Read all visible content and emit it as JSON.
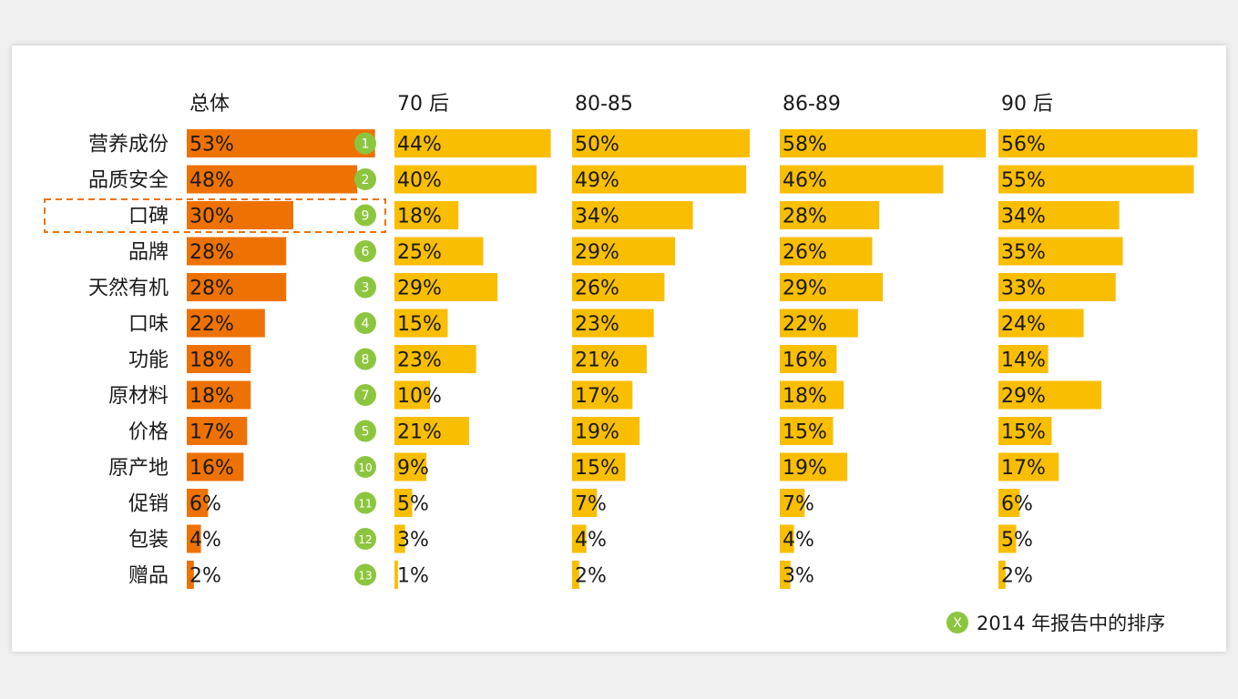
{
  "chart_data": {
    "type": "bar",
    "orientation": "horizontal",
    "categories": [
      "营养成份",
      "品质安全",
      "口碑",
      "品牌",
      "天然有机",
      "口味",
      "功能",
      "原材料",
      "价格",
      "原产地",
      "促销",
      "包装",
      "赠品"
    ],
    "series": [
      {
        "name": "总体",
        "values": [
          53,
          48,
          30,
          28,
          28,
          22,
          18,
          18,
          17,
          16,
          6,
          4,
          2
        ]
      },
      {
        "name": "70 后",
        "values": [
          44,
          40,
          18,
          25,
          29,
          15,
          23,
          10,
          21,
          9,
          5,
          3,
          1
        ]
      },
      {
        "name": "80-85",
        "values": [
          50,
          49,
          34,
          29,
          26,
          23,
          21,
          17,
          19,
          15,
          7,
          4,
          2
        ]
      },
      {
        "name": "86-89",
        "values": [
          58,
          46,
          28,
          26,
          29,
          22,
          16,
          18,
          15,
          19,
          7,
          4,
          3
        ]
      },
      {
        "name": "90 后",
        "values": [
          56,
          55,
          34,
          35,
          33,
          24,
          14,
          29,
          15,
          17,
          6,
          5,
          2
        ]
      }
    ],
    "value_suffix": "%",
    "rank_2014": [
      "1",
      "2",
      "9",
      "6",
      "3",
      "4",
      "8",
      "7",
      "5",
      "10",
      "11",
      "12",
      "13"
    ],
    "highlighted_category": "口碑",
    "legend": {
      "symbol": "X",
      "label": "2014 年报告中的排序",
      "placement": "bottom-right"
    },
    "grid": false,
    "colors": {
      "overall_bar": "#ee7203",
      "segment_bar": "#f9be00",
      "rank_badge": "#8cc63f",
      "highlight_border": "#ee7203",
      "text": "#1a1a1a"
    }
  }
}
